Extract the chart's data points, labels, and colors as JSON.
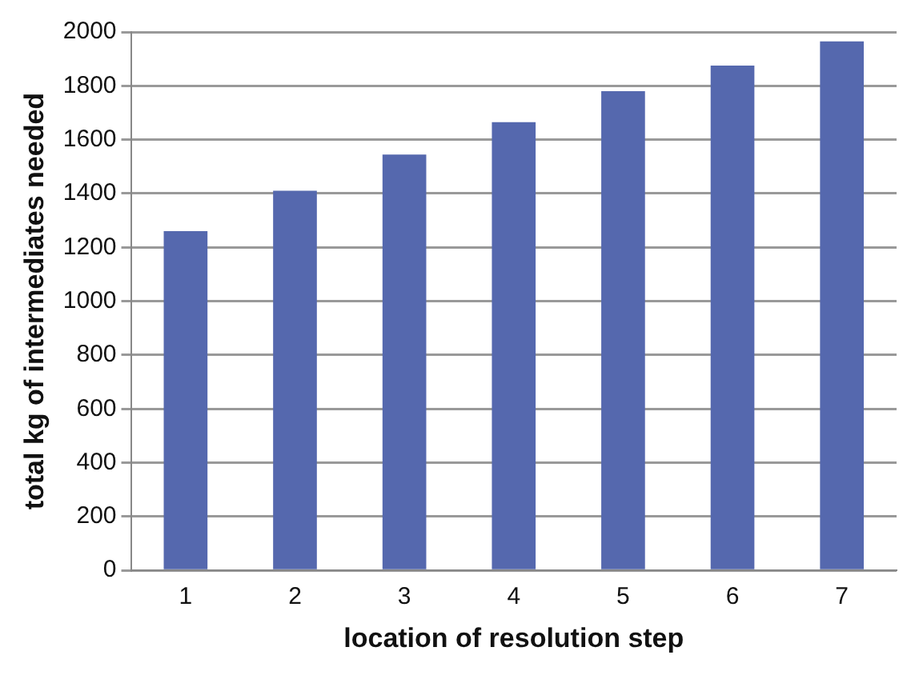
{
  "chart_data": {
    "type": "bar",
    "xlabel": "location of resolution step",
    "ylabel": "total kg of intermediates needed",
    "categories": [
      "1",
      "2",
      "3",
      "4",
      "5",
      "6",
      "7"
    ],
    "values": [
      1260,
      1410,
      1545,
      1665,
      1780,
      1875,
      1965
    ],
    "color": "#5568ae",
    "ylim": [
      0,
      2000
    ],
    "yticks": [
      0,
      200,
      400,
      600,
      800,
      1000,
      1200,
      1400,
      1600,
      1800,
      2000
    ],
    "grid": "y",
    "legend": false
  }
}
